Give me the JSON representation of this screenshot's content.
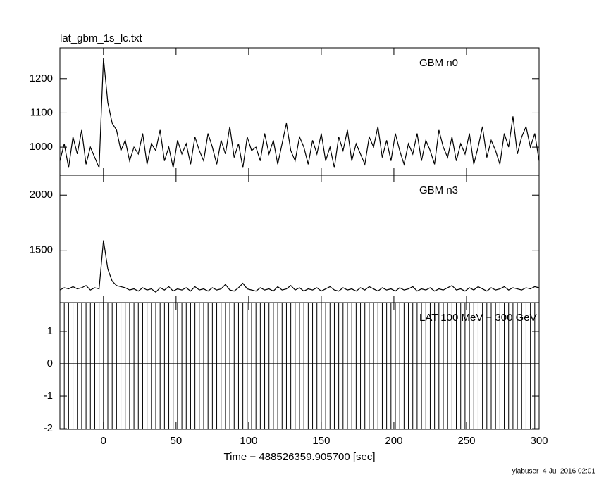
{
  "title": "lat_gbm_1s_lc.txt",
  "x_label": "Time − 488526359.905700 [sec]",
  "footer": "ylabuser  4-Jul-2016 02:01",
  "chart_data": [
    {
      "type": "line",
      "label": "GBM n0",
      "color": "#000000",
      "xlim": [
        -30,
        300
      ],
      "xticks": [
        0,
        50,
        100,
        150,
        200,
        250,
        300
      ],
      "ylim": [
        918,
        1290
      ],
      "yticks": [
        1000,
        1100,
        1200
      ],
      "x": [
        -30,
        -27,
        -24,
        -21,
        -18,
        -15,
        -12,
        -9,
        -6,
        -3,
        0,
        3,
        6,
        9,
        12,
        15,
        18,
        21,
        24,
        27,
        30,
        33,
        36,
        39,
        42,
        45,
        48,
        51,
        54,
        57,
        60,
        63,
        66,
        69,
        72,
        75,
        78,
        81,
        84,
        87,
        90,
        93,
        96,
        99,
        102,
        105,
        108,
        111,
        114,
        117,
        120,
        123,
        126,
        129,
        132,
        135,
        138,
        141,
        144,
        147,
        150,
        153,
        156,
        159,
        162,
        165,
        168,
        171,
        174,
        177,
        180,
        183,
        186,
        189,
        192,
        195,
        198,
        201,
        204,
        207,
        210,
        213,
        216,
        219,
        222,
        225,
        228,
        231,
        234,
        237,
        240,
        243,
        246,
        249,
        252,
        255,
        258,
        261,
        264,
        267,
        270,
        273,
        276,
        279,
        282,
        285,
        288,
        291,
        294,
        297,
        300
      ],
      "values": [
        960,
        1010,
        940,
        1030,
        980,
        1050,
        950,
        1000,
        970,
        940,
        1260,
        1130,
        1070,
        1050,
        990,
        1020,
        960,
        1000,
        980,
        1040,
        950,
        1010,
        990,
        1050,
        960,
        1000,
        940,
        1020,
        980,
        1010,
        950,
        1030,
        990,
        960,
        1040,
        1000,
        950,
        1020,
        980,
        1060,
        970,
        1010,
        940,
        1030,
        990,
        1000,
        960,
        1040,
        980,
        1020,
        950,
        1010,
        1070,
        990,
        960,
        1030,
        1000,
        950,
        1020,
        980,
        1040,
        960,
        1000,
        940,
        1030,
        990,
        1050,
        960,
        1010,
        980,
        950,
        1030,
        1000,
        1060,
        970,
        1020,
        960,
        1040,
        990,
        950,
        1010,
        980,
        1040,
        960,
        1020,
        990,
        950,
        1050,
        1000,
        970,
        1030,
        960,
        1010,
        980,
        1040,
        950,
        1000,
        1060,
        970,
        1020,
        990,
        950,
        1040,
        1000,
        1090,
        980,
        1030,
        1060,
        1000,
        1040,
        960
      ]
    },
    {
      "type": "line",
      "label": "GBM n3",
      "color": "#000000",
      "xlim": [
        -30,
        300
      ],
      "xticks": [
        0,
        50,
        100,
        150,
        200,
        250,
        300
      ],
      "ylim": [
        1026,
        2180
      ],
      "yticks": [
        1500,
        2000
      ],
      "x": [
        -30,
        -27,
        -24,
        -21,
        -18,
        -15,
        -12,
        -9,
        -6,
        -3,
        0,
        3,
        6,
        9,
        12,
        15,
        18,
        21,
        24,
        27,
        30,
        33,
        36,
        39,
        42,
        45,
        48,
        51,
        54,
        57,
        60,
        63,
        66,
        69,
        72,
        75,
        78,
        81,
        84,
        87,
        90,
        93,
        96,
        99,
        102,
        105,
        108,
        111,
        114,
        117,
        120,
        123,
        126,
        129,
        132,
        135,
        138,
        141,
        144,
        147,
        150,
        153,
        156,
        159,
        162,
        165,
        168,
        171,
        174,
        177,
        180,
        183,
        186,
        189,
        192,
        195,
        198,
        201,
        204,
        207,
        210,
        213,
        216,
        219,
        222,
        225,
        228,
        231,
        234,
        237,
        240,
        243,
        246,
        249,
        252,
        255,
        258,
        261,
        264,
        267,
        270,
        273,
        276,
        279,
        282,
        285,
        288,
        291,
        294,
        297,
        300
      ],
      "values": [
        1140,
        1160,
        1150,
        1170,
        1150,
        1160,
        1180,
        1140,
        1160,
        1150,
        1590,
        1330,
        1220,
        1180,
        1170,
        1160,
        1140,
        1150,
        1130,
        1160,
        1140,
        1150,
        1120,
        1160,
        1140,
        1170,
        1130,
        1150,
        1140,
        1160,
        1130,
        1170,
        1140,
        1150,
        1130,
        1160,
        1140,
        1150,
        1190,
        1140,
        1130,
        1160,
        1200,
        1150,
        1140,
        1130,
        1160,
        1140,
        1150,
        1130,
        1170,
        1140,
        1150,
        1180,
        1140,
        1160,
        1130,
        1150,
        1140,
        1160,
        1130,
        1150,
        1170,
        1140,
        1130,
        1160,
        1140,
        1150,
        1130,
        1160,
        1140,
        1170,
        1150,
        1130,
        1160,
        1140,
        1150,
        1130,
        1160,
        1140,
        1150,
        1170,
        1130,
        1150,
        1140,
        1160,
        1130,
        1150,
        1140,
        1160,
        1180,
        1140,
        1150,
        1130,
        1160,
        1140,
        1170,
        1150,
        1130,
        1160,
        1140,
        1150,
        1170,
        1140,
        1160,
        1150,
        1140,
        1160,
        1150,
        1170,
        1160
      ]
    },
    {
      "type": "line",
      "label": "LAT 100 MeV − 300 GeV",
      "color": "#000000",
      "xlim": [
        -30,
        300
      ],
      "xticks": [
        0,
        50,
        100,
        150,
        200,
        250,
        300
      ],
      "ylim": [
        -2.02,
        1.89
      ],
      "yticks": [
        -2,
        -1,
        0,
        1
      ],
      "x": [
        -30,
        -27,
        -24,
        -21,
        -18,
        -15,
        -12,
        -9,
        -6,
        -3,
        0,
        3,
        6,
        9,
        12,
        15,
        18,
        21,
        24,
        27,
        30,
        33,
        36,
        39,
        42,
        45,
        48,
        51,
        54,
        57,
        60,
        63,
        66,
        69,
        72,
        75,
        78,
        81,
        84,
        87,
        90,
        93,
        96,
        99,
        102,
        105,
        108,
        111,
        114,
        117,
        120,
        123,
        126,
        129,
        132,
        135,
        138,
        141,
        144,
        147,
        150,
        153,
        156,
        159,
        162,
        165,
        168,
        171,
        174,
        177,
        180,
        183,
        186,
        189,
        192,
        195,
        198,
        201,
        204,
        207,
        210,
        213,
        216,
        219,
        222,
        225,
        228,
        231,
        234,
        237,
        240,
        243,
        246,
        249,
        252,
        255,
        258,
        261,
        264,
        267,
        270,
        273,
        276,
        279,
        282,
        285,
        288,
        291,
        294,
        297,
        300
      ],
      "values": [
        0,
        0,
        0,
        0,
        0,
        0,
        0,
        0,
        0,
        0,
        0,
        0,
        0,
        0,
        0,
        0,
        0,
        0,
        0,
        0,
        0,
        0,
        0,
        0,
        0,
        0,
        0,
        0,
        0,
        0,
        0,
        0,
        0,
        0,
        0,
        0,
        0,
        0,
        0,
        0,
        0,
        0,
        0,
        0,
        0,
        0,
        0,
        0,
        0,
        0,
        0,
        0,
        0,
        0,
        0,
        0,
        0,
        0,
        0,
        0,
        0,
        0,
        0,
        0,
        0,
        0,
        0,
        0,
        0,
        0,
        0,
        0,
        0,
        0,
        0,
        0,
        0,
        0,
        0,
        0,
        0,
        0,
        0,
        0,
        0,
        0,
        0,
        0,
        0,
        0,
        0,
        0,
        0,
        0,
        0,
        0,
        0,
        0,
        0,
        0,
        0,
        0,
        0,
        0,
        0,
        0,
        0,
        0,
        0,
        0,
        0
      ],
      "errors": [
        2,
        2,
        2,
        2,
        2,
        2,
        2,
        2,
        2,
        2,
        2,
        2,
        2,
        2,
        2,
        2,
        2,
        2,
        2,
        2,
        2,
        2,
        2,
        2,
        2,
        2,
        2,
        2,
        2,
        2,
        2,
        2,
        2,
        2,
        2,
        2,
        2,
        2,
        2,
        2,
        2,
        2,
        2,
        2,
        2,
        2,
        2,
        2,
        2,
        2,
        2,
        2,
        2,
        2,
        2,
        2,
        2,
        2,
        2,
        2,
        2,
        2,
        2,
        2,
        2,
        2,
        2,
        2,
        2,
        2,
        2,
        2,
        2,
        2,
        2,
        2,
        2,
        2,
        2,
        2,
        2,
        2,
        2,
        2,
        2,
        2,
        2,
        2,
        2,
        2,
        2,
        2,
        2,
        2,
        2,
        2,
        2,
        2,
        2,
        2,
        2,
        2,
        2,
        2,
        2,
        2,
        2,
        2,
        2,
        2,
        2
      ]
    }
  ]
}
